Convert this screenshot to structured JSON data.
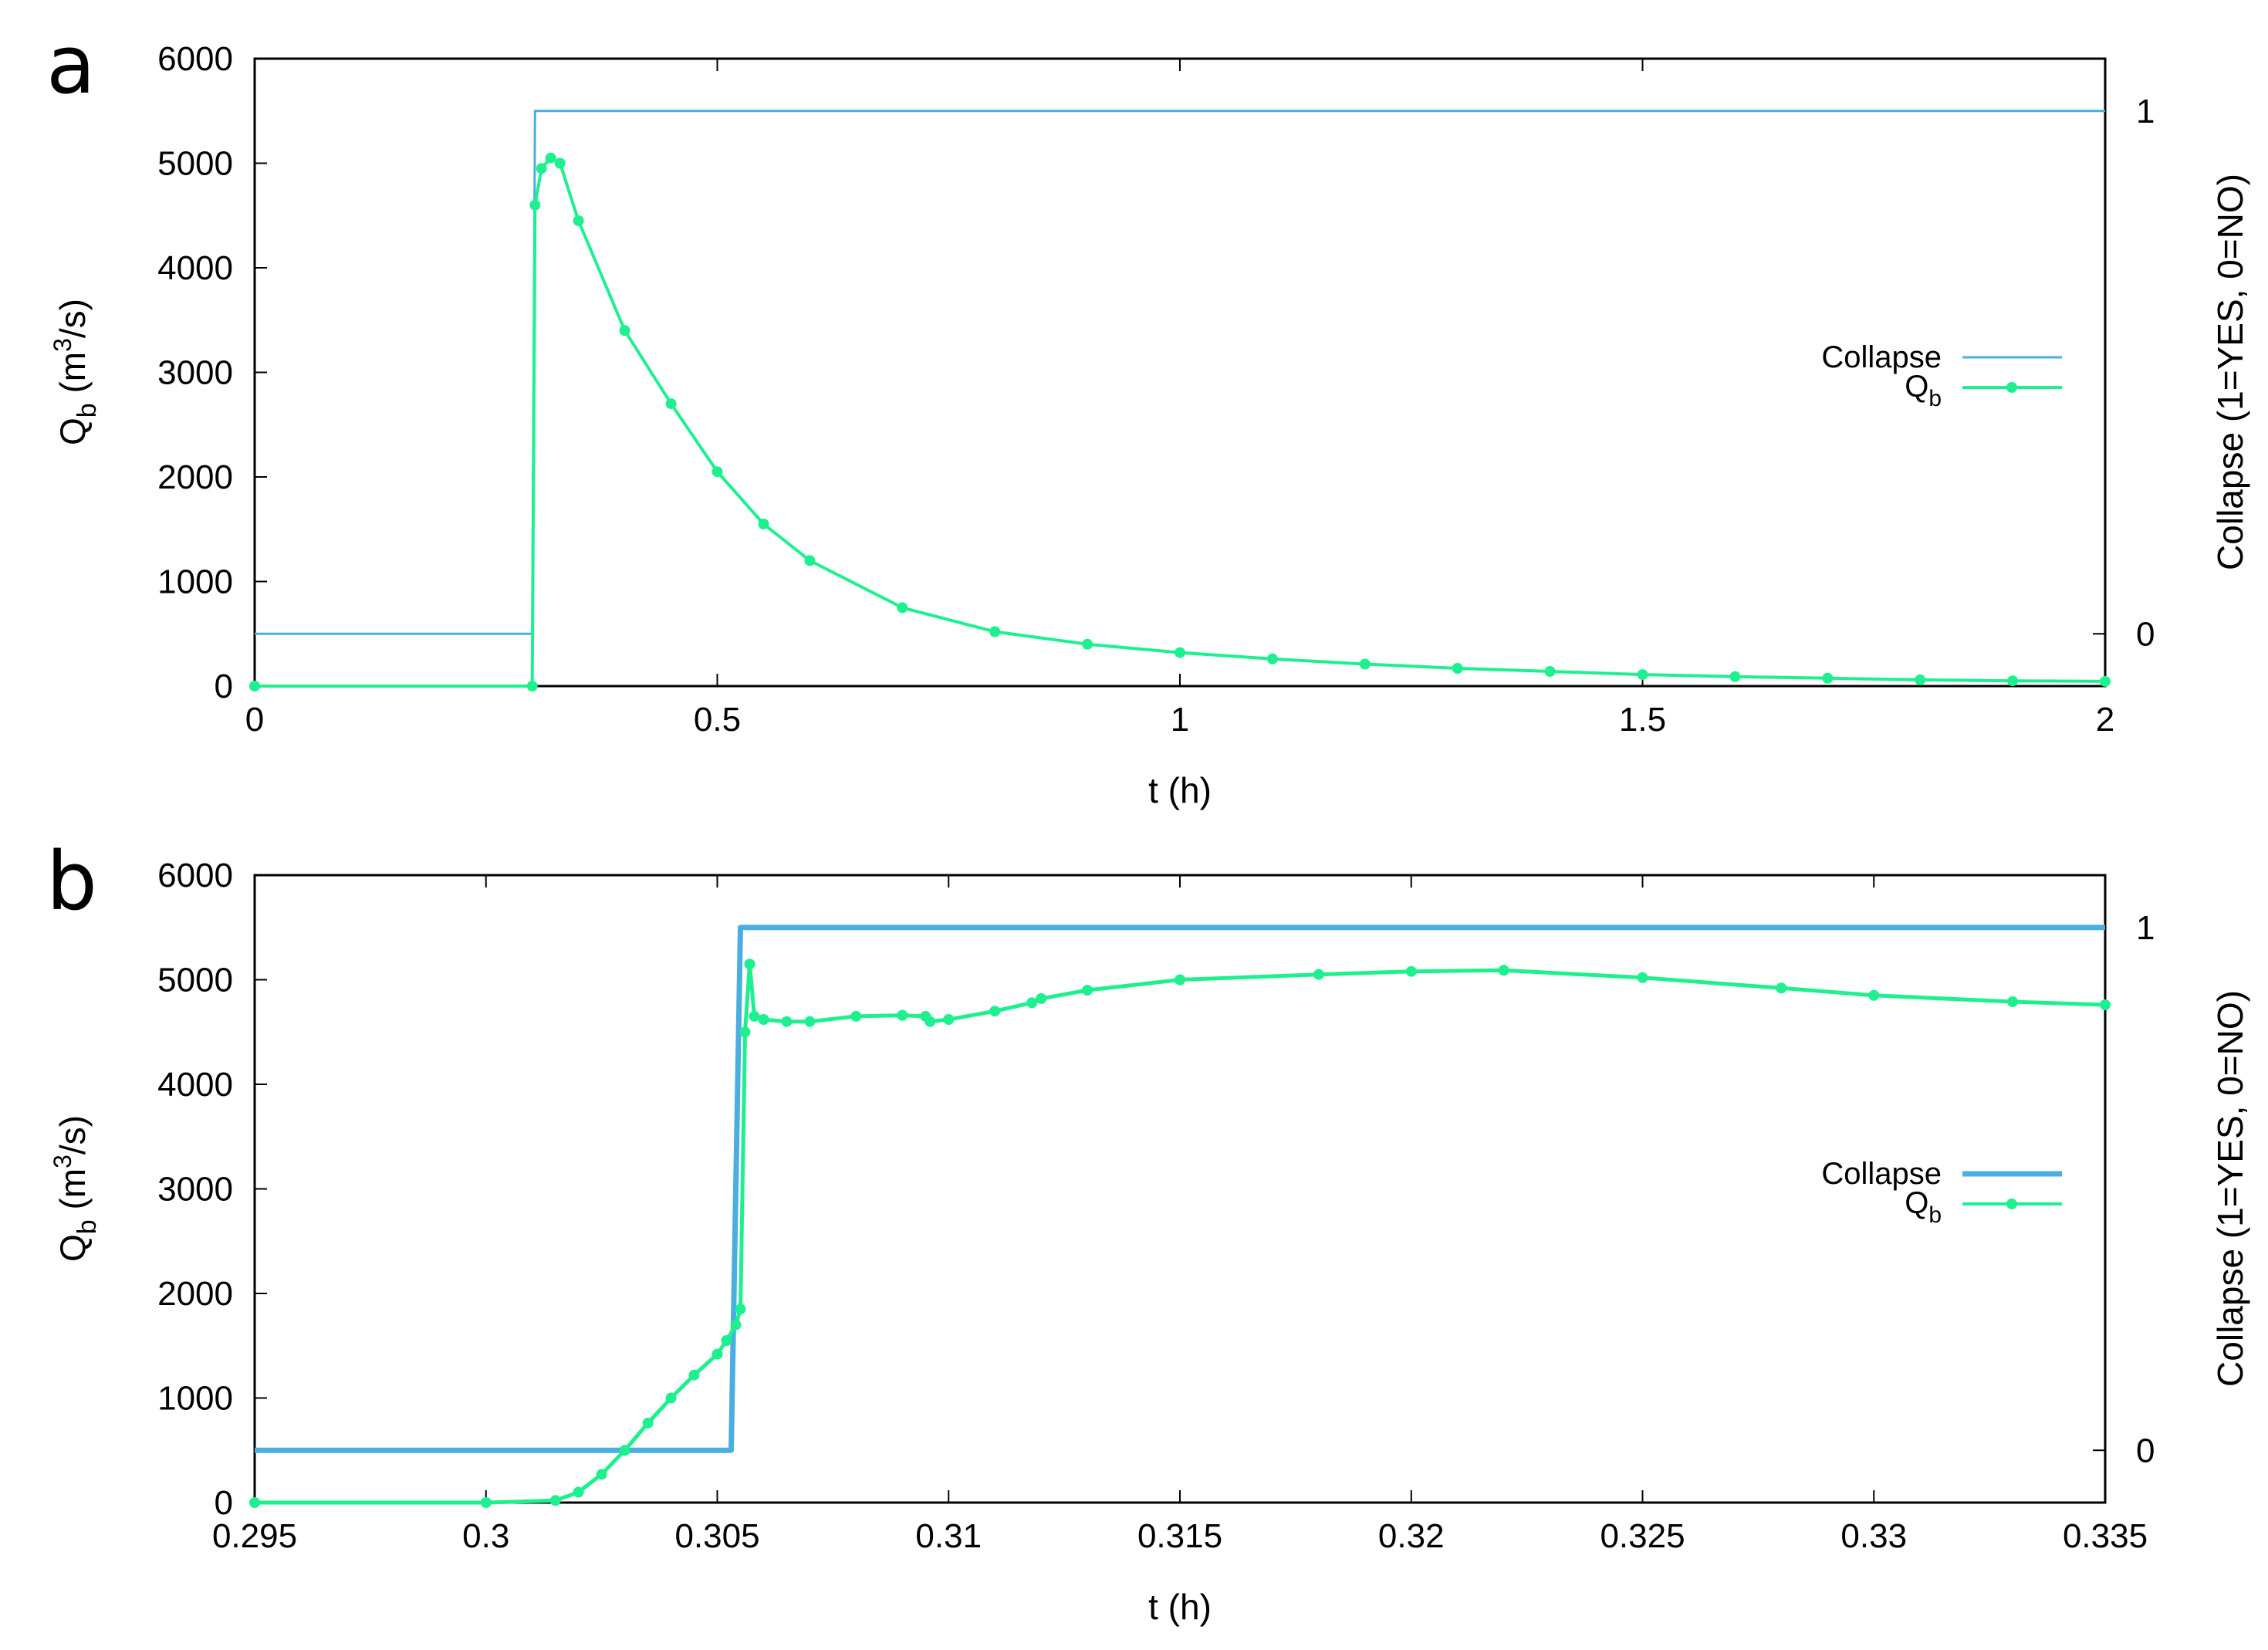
{
  "chart_data": [
    {
      "panel": "a",
      "type": "line",
      "xlabel": "t (h)",
      "ylabel": "Q",
      "ylabel_sub": "b",
      "ylabel_unit_pre": " (m",
      "ylabel_unit_sup": "3",
      "ylabel_unit_post": "/s)",
      "y2label": "Collapse (1=YES, 0=NO)",
      "xlim": [
        0,
        2
      ],
      "ylim": [
        0,
        6000
      ],
      "y2lim": [
        -0.1,
        1.1
      ],
      "xticks": [
        0,
        0.5,
        1,
        1.5,
        2
      ],
      "xtick_labels": [
        "0",
        "0.5",
        "1",
        "1.5",
        "2"
      ],
      "yticks": [
        0,
        1000,
        2000,
        3000,
        4000,
        5000,
        6000
      ],
      "ytick_labels": [
        "0",
        "1000",
        "2000",
        "3000",
        "4000",
        "5000",
        "6000"
      ],
      "y2ticks": [
        0,
        1
      ],
      "y2tick_labels": [
        "0",
        "1"
      ],
      "legend_position": "right",
      "legend": [
        {
          "label": "Collapse",
          "sub": "",
          "color": "#4aaee0",
          "marker": false
        },
        {
          "label": "Q",
          "sub": "b",
          "color": "#1ef08f",
          "marker": true
        }
      ],
      "series": [
        {
          "name": "Collapse",
          "axis": "y2",
          "color": "#4aaee0",
          "style": "step",
          "x": [
            0,
            0.3,
            0.303,
            2
          ],
          "y": [
            0,
            0,
            1,
            1
          ]
        },
        {
          "name": "Q_b",
          "axis": "y",
          "color": "#1ef08f",
          "style": "line-points",
          "x": [
            0,
            0.3,
            0.303,
            0.31,
            0.32,
            0.33,
            0.35,
            0.4,
            0.45,
            0.5,
            0.55,
            0.6,
            0.7,
            0.8,
            0.9,
            1.0,
            1.1,
            1.2,
            1.3,
            1.4,
            1.5,
            1.6,
            1.7,
            1.8,
            1.9,
            2.0
          ],
          "y": [
            0,
            0,
            4600,
            4950,
            5050,
            5000,
            4450,
            3400,
            2700,
            2050,
            1550,
            1200,
            750,
            520,
            400,
            320,
            260,
            210,
            170,
            140,
            110,
            90,
            75,
            60,
            50,
            45
          ]
        }
      ]
    },
    {
      "panel": "b",
      "type": "line",
      "xlabel": "t (h)",
      "ylabel": "Q",
      "ylabel_sub": "b",
      "ylabel_unit_pre": " (m",
      "ylabel_unit_sup": "3",
      "ylabel_unit_post": "/s)",
      "y2label": "Collapse (1=YES, 0=NO)",
      "xlim": [
        0.295,
        0.335
      ],
      "ylim": [
        0,
        6000
      ],
      "y2lim": [
        -0.1,
        1.1
      ],
      "xticks": [
        0.295,
        0.3,
        0.305,
        0.31,
        0.315,
        0.32,
        0.325,
        0.33,
        0.335
      ],
      "xtick_labels": [
        "0.295",
        "0.3",
        "0.305",
        "0.31",
        "0.315",
        "0.32",
        "0.325",
        "0.33",
        "0.335"
      ],
      "yticks": [
        0,
        1000,
        2000,
        3000,
        4000,
        5000,
        6000
      ],
      "ytick_labels": [
        "0",
        "1000",
        "2000",
        "3000",
        "4000",
        "5000",
        "6000"
      ],
      "y2ticks": [
        0,
        1
      ],
      "y2tick_labels": [
        "0",
        "1"
      ],
      "legend_position": "right",
      "legend": [
        {
          "label": "Collapse",
          "sub": "",
          "color": "#4aaee0",
          "marker": false
        },
        {
          "label": "Q",
          "sub": "b",
          "color": "#1ef08f",
          "marker": true
        }
      ],
      "series": [
        {
          "name": "Collapse",
          "axis": "y2",
          "color": "#4aaee0",
          "style": "step",
          "x": [
            0.295,
            0.3053,
            0.3055,
            0.335
          ],
          "y": [
            0,
            0,
            1,
            1
          ]
        },
        {
          "name": "Q_b",
          "axis": "y",
          "color": "#1ef08f",
          "style": "line-points",
          "x": [
            0.295,
            0.3,
            0.3015,
            0.302,
            0.3025,
            0.303,
            0.3035,
            0.304,
            0.3045,
            0.305,
            0.3052,
            0.3054,
            0.3055,
            0.3056,
            0.3057,
            0.3058,
            0.306,
            0.3065,
            0.307,
            0.308,
            0.309,
            0.3095,
            0.3096,
            0.31,
            0.311,
            0.3118,
            0.312,
            0.313,
            0.315,
            0.318,
            0.32,
            0.322,
            0.325,
            0.328,
            0.33,
            0.333,
            0.335
          ],
          "y": [
            0,
            0,
            20,
            100,
            270,
            500,
            760,
            1000,
            1220,
            1420,
            1550,
            1700,
            1850,
            4500,
            5150,
            4650,
            4620,
            4600,
            4600,
            4650,
            4660,
            4650,
            4600,
            4620,
            4700,
            4780,
            4820,
            4900,
            5000,
            5050,
            5080,
            5090,
            5020,
            4920,
            4850,
            4790,
            4760
          ]
        }
      ]
    }
  ]
}
